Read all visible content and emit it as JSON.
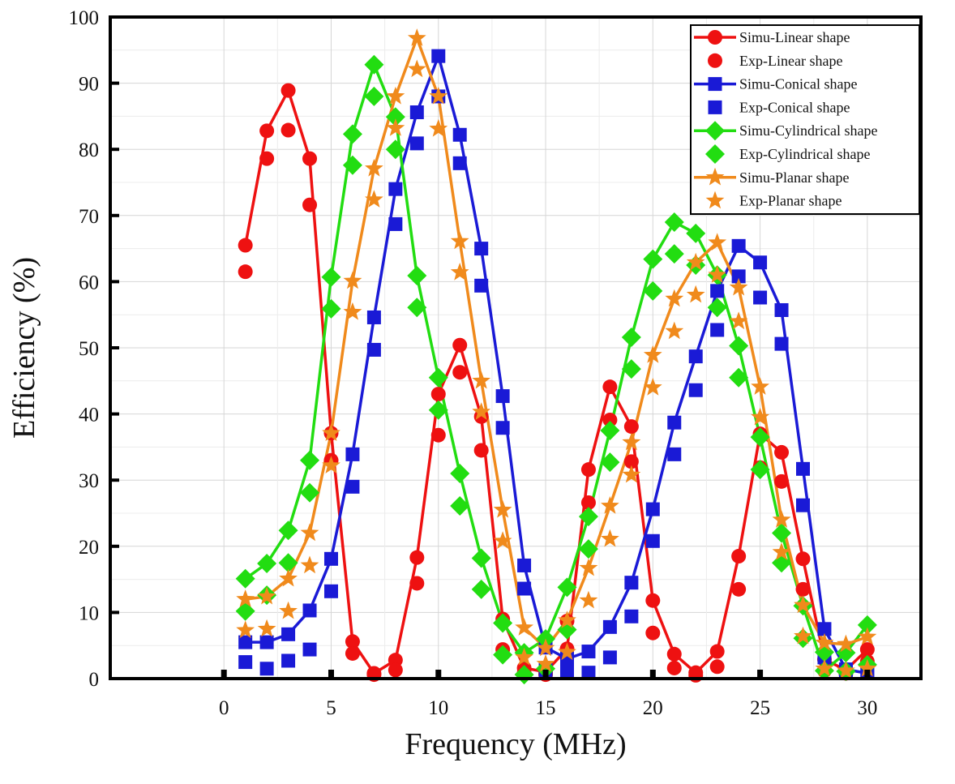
{
  "chart_data": {
    "type": "line",
    "xlabel": "Frequency (MHz)",
    "ylabel": "Efficiency (%)",
    "xlim": [
      -5.3,
      32.5
    ],
    "ylim": [
      0,
      100
    ],
    "xticks": [
      0,
      5,
      10,
      15,
      20,
      25,
      30
    ],
    "yticks": [
      0,
      10,
      20,
      30,
      40,
      50,
      60,
      70,
      80,
      90,
      100
    ],
    "grid": true,
    "legend_position": "top-right",
    "x": [
      1,
      2,
      3,
      4,
      5,
      6,
      7,
      8,
      9,
      10,
      11,
      12,
      13,
      14,
      15,
      16,
      17,
      18,
      19,
      20,
      21,
      22,
      23,
      24,
      25,
      26,
      27,
      28,
      29,
      30
    ],
    "series": [
      {
        "name": "Simu-Linear shape",
        "kind": "simu",
        "marker": "circle",
        "color": "#ee1111",
        "values": [
          65.5,
          82.8,
          88.9,
          78.6,
          37.1,
          5.6,
          0.8,
          2.8,
          18.3,
          43.0,
          50.4,
          39.6,
          9.0,
          1.6,
          1.0,
          4.5,
          31.6,
          44.1,
          38.1,
          11.8,
          3.7,
          0.9,
          4.1,
          18.5,
          37.0,
          34.2,
          18.1,
          2.9,
          1.3,
          4.4
        ]
      },
      {
        "name": "Exp-Linear shape",
        "kind": "exp",
        "marker": "circle",
        "color": "#ee1111",
        "values": [
          61.5,
          78.6,
          82.9,
          71.6,
          33.0,
          3.8,
          0.6,
          1.3,
          14.4,
          36.8,
          46.3,
          34.5,
          4.4,
          0.9,
          0.6,
          8.7,
          26.6,
          39.1,
          32.8,
          6.9,
          1.6,
          0.5,
          1.8,
          13.5,
          31.9,
          29.8,
          13.5,
          1.2,
          0.8,
          2.6
        ]
      },
      {
        "name": "Simu-Conical shape",
        "kind": "simu",
        "marker": "square",
        "color": "#1a1ad6",
        "values": [
          5.5,
          5.5,
          6.7,
          10.3,
          18.1,
          33.9,
          54.6,
          74.0,
          85.6,
          94.1,
          82.2,
          65.0,
          42.7,
          17.1,
          4.7,
          3.0,
          4.1,
          7.8,
          14.5,
          25.6,
          38.7,
          48.7,
          58.6,
          65.4,
          62.9,
          55.7,
          31.7,
          7.5,
          1.4,
          0.8
        ]
      },
      {
        "name": "Exp-Conical shape",
        "kind": "exp",
        "marker": "square",
        "color": "#1a1ad6",
        "values": [
          2.5,
          1.5,
          2.7,
          4.4,
          13.2,
          29.0,
          49.7,
          68.7,
          80.9,
          88.0,
          77.9,
          59.4,
          37.9,
          13.6,
          1.3,
          1.2,
          0.9,
          3.2,
          9.4,
          20.8,
          33.9,
          43.6,
          52.7,
          60.8,
          57.6,
          50.6,
          26.2,
          3.2,
          1.1,
          1.2
        ]
      },
      {
        "name": "Simu-Cylindrical shape",
        "kind": "simu",
        "marker": "diamond",
        "color": "#22dd11",
        "values": [
          15.1,
          17.4,
          22.4,
          33.0,
          60.7,
          82.3,
          92.8,
          84.9,
          60.9,
          45.5,
          31.0,
          18.2,
          8.4,
          3.9,
          6.0,
          13.8,
          24.5,
          37.5,
          51.6,
          63.4,
          69.0,
          67.3,
          61.0,
          50.3,
          36.5,
          22.0,
          11.0,
          1.2,
          3.9,
          8.1
        ]
      },
      {
        "name": "Exp-Cylindrical shape",
        "kind": "exp",
        "marker": "diamond",
        "color": "#22dd11",
        "values": [
          10.2,
          12.6,
          17.5,
          28.1,
          55.9,
          77.6,
          88.0,
          80.0,
          56.1,
          40.6,
          26.1,
          13.5,
          3.6,
          0.6,
          1.5,
          7.4,
          19.6,
          32.7,
          46.8,
          58.6,
          64.2,
          62.5,
          56.1,
          45.5,
          31.6,
          17.5,
          6.1,
          4.0,
          1.1,
          2.1
        ]
      },
      {
        "name": "Simu-Planar shape",
        "kind": "simu",
        "marker": "star",
        "color": "#f08a1c",
        "values": [
          12.0,
          12.4,
          15.1,
          22.0,
          37.1,
          60.1,
          77.1,
          88.0,
          96.8,
          88.0,
          66.1,
          45.0,
          25.5,
          7.7,
          4.6,
          8.8,
          16.7,
          26.1,
          35.7,
          48.9,
          57.4,
          62.9,
          65.9,
          59.1,
          44.1,
          24.0,
          11.1,
          5.4,
          5.2,
          6.3
        ]
      },
      {
        "name": "Exp-Planar shape",
        "kind": "exp",
        "marker": "star",
        "color": "#f08a1c",
        "values": [
          7.3,
          7.5,
          10.2,
          17.1,
          32.2,
          55.4,
          72.4,
          83.2,
          92.1,
          83.1,
          61.4,
          40.3,
          20.8,
          3.2,
          2.2,
          4.0,
          11.8,
          21.1,
          30.8,
          44.0,
          52.5,
          58.0,
          61.0,
          54.0,
          39.5,
          19.1,
          6.4,
          1.5,
          1.2,
          1.5
        ]
      }
    ]
  }
}
